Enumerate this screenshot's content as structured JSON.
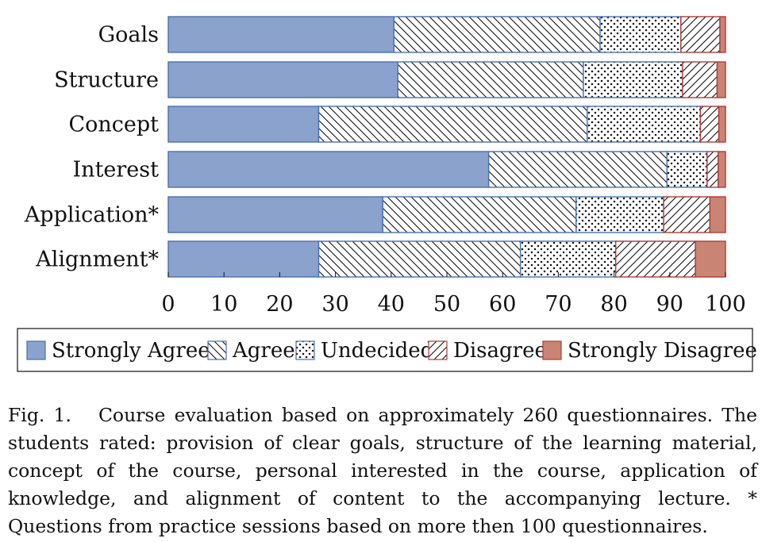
{
  "chart_data": {
    "type": "bar",
    "orientation": "horizontal",
    "stacked": true,
    "categories": [
      "Goals",
      "Structure",
      "Concept",
      "Interest",
      "Application*",
      "Alignment*"
    ],
    "series": [
      {
        "name": "Strongly Agree",
        "values": [
          40.5,
          41.2,
          27.0,
          57.5,
          38.5,
          27.0
        ]
      },
      {
        "name": "Agree",
        "values": [
          37.0,
          33.3,
          48.2,
          32.0,
          34.7,
          36.2
        ]
      },
      {
        "name": "Undecided",
        "values": [
          14.5,
          17.8,
          20.3,
          7.2,
          15.7,
          17.1
        ]
      },
      {
        "name": "Disagree",
        "values": [
          7.0,
          6.2,
          3.3,
          2.0,
          8.3,
          14.3
        ]
      },
      {
        "name": "Strongly Disagree",
        "values": [
          1.0,
          1.5,
          1.2,
          1.3,
          2.8,
          5.4
        ]
      }
    ],
    "xlim": [
      0,
      100
    ],
    "xticks": [
      "0",
      "10",
      "20",
      "30",
      "40",
      "50",
      "60",
      "70",
      "80",
      "90",
      "100"
    ],
    "xlabel": "",
    "ylabel": "",
    "grid": false,
    "legend": "bottom",
    "colors": {
      "Strongly Agree": "#8aa2cc",
      "Agree": "#ffffff",
      "Undecided": "#ffffff",
      "Disagree": "#ffffff",
      "Strongly Disagree": "#c98474"
    },
    "patterns": {
      "Strongly Agree": "solid",
      "Agree": "north-west-lines",
      "Undecided": "dots",
      "Disagree": "north-east-lines",
      "Strongly Disagree": "solid"
    },
    "edge_colors": {
      "blue": "#4a70b0",
      "red": "#b23a3a"
    }
  },
  "caption": {
    "label": "Fig. 1.",
    "text": "Course evaluation based on approximately 260 questionnaires. The students rated: provision of clear goals, structure of the learning material, concept of the course, personal interested in the course, application of knowledge, and alignment of content to the accompanying lecture. * Questions from practice sessions based on more then 100 questionnaires."
  }
}
